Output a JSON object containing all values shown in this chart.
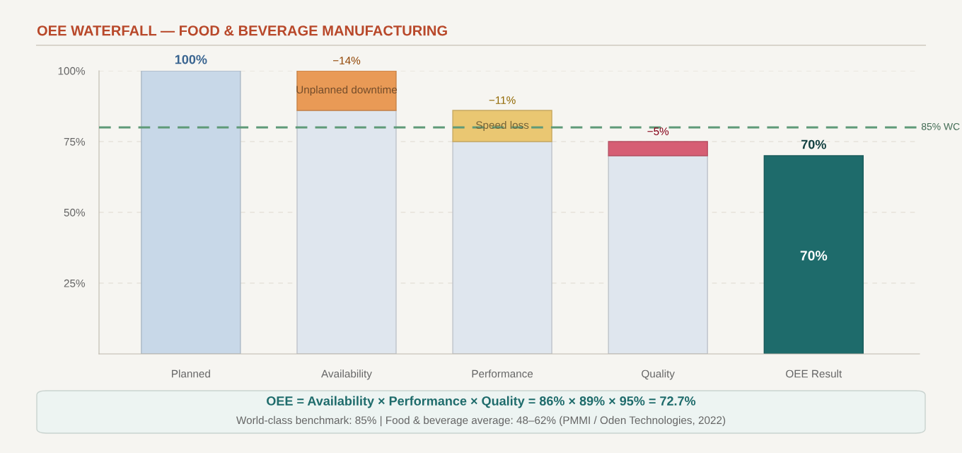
{
  "chart_data": {
    "type": "bar",
    "title": "OEE WATERFALL — FOOD & BEVERAGE MANUFACTURING",
    "categories": [
      "Planned",
      "Availability",
      "Performance",
      "Quality",
      "OEE Result"
    ],
    "stacked": true,
    "series": [
      {
        "colors": [
          "#c8d8e8",
          "#dfe6ee",
          "#dfe6ee",
          "#dfe6ee",
          "#1e6b6b"
        ],
        "values": [
          100,
          86,
          75,
          70,
          70
        ],
        "value_labels": [
          "100%",
          null,
          null,
          null,
          "70%"
        ]
      },
      {
        "colors": [
          "#e99a56",
          "#e99a56",
          "#eac772",
          "#d65e74",
          "#d65e74"
        ],
        "base": [
          null,
          100,
          86,
          75,
          null
        ],
        "values": [
          null,
          -14,
          -11,
          -5,
          null
        ],
        "value_labels": [
          null,
          "−14%",
          "−11%",
          "−5%",
          null
        ]
      }
    ],
    "ylim": [
      0,
      100
    ],
    "yticks": [
      {
        "value": 25,
        "label": "25%"
      },
      {
        "value": 50,
        "label": "50%"
      },
      {
        "value": 75,
        "label": "75%"
      },
      {
        "value": 100,
        "label": "100%"
      }
    ],
    "grid": "y",
    "ref_lines": [
      {
        "axis": "y",
        "value": 80,
        "label": "85% WC",
        "color": "#5f9a78",
        "line_style": "dashed"
      }
    ],
    "annotations": [
      "Unplanned downtime",
      "Speed loss",
      "70%",
      "OEE = Availability × Performance × Quality = 86% × 89% × 95% = 72.7%",
      "World-class benchmark: 85% | Food & beverage average: 48–62% (PMMI / Oden Technologies, 2022)"
    ]
  }
}
